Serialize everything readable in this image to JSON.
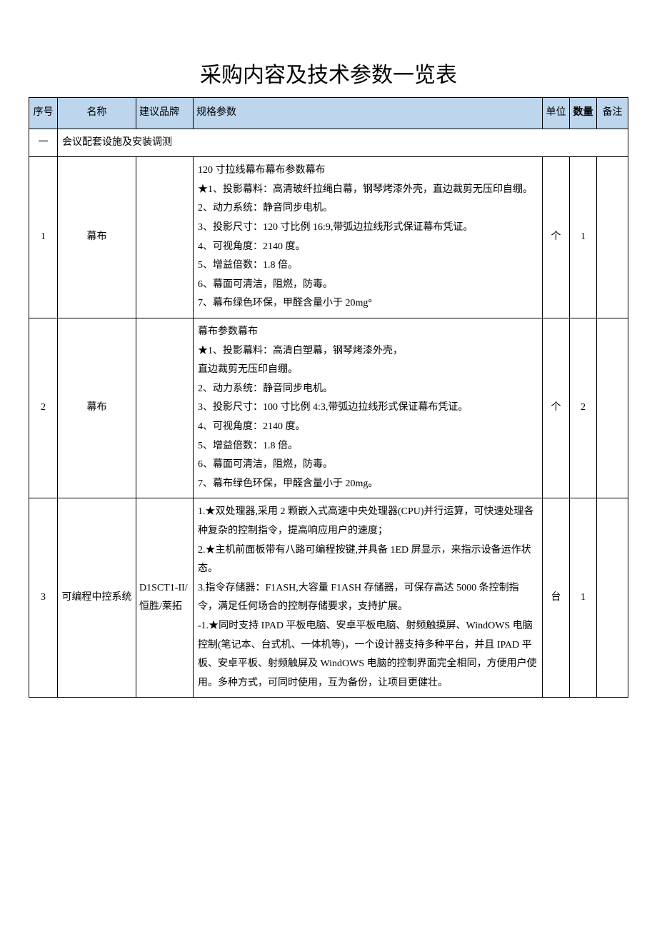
{
  "title": "采购内容及技术参数一览表",
  "columns": [
    "序号",
    "名称",
    "建议品牌",
    "规格参数",
    "单位",
    "数量",
    "备注"
  ],
  "bold_columns": [
    false,
    false,
    false,
    false,
    false,
    true,
    false
  ],
  "header_bg": "#bdd6ee",
  "section": {
    "seq": "一",
    "label": "会议配套设施及安装调测"
  },
  "rows": [
    {
      "seq": "1",
      "name": "幕布",
      "brand": "",
      "spec": [
        "120 寸拉线幕布幕布参数幕布",
        "★1、投影幕料：高清玻纤拉绳白幕，钢琴烤漆外壳，直边裁剪无压印自绷。",
        "2、动力系统：静音同步电机。",
        "3、投影尺寸：120 寸比例 16:9,带弧边拉线形式保证幕布凭证。",
        "4、可视角度：2140 度。",
        "5、增益倍数：1.8 倍。",
        "6、幕面可清洁，阻燃，防毒。",
        "7、幕布绿色环保，甲醛含量小于 20mg°"
      ],
      "unit": "个",
      "qty": "1",
      "note": ""
    },
    {
      "seq": "2",
      "name": "幕布",
      "brand": "",
      "spec": [
        "幕布参数幕布",
        "★1、投影幕料：高清白塑幕，钢琴烤漆外壳，",
        "直边裁剪无压印自绷。",
        "2、动力系统：静音同步电机。",
        "3、投影尺寸：100 寸比例 4:3,带弧边拉线形式保证幕布凭证。",
        "4、可视角度：2140 度。",
        "5、增益倍数：1.8 倍。",
        "6、幕面可清洁，阻燃，防毒。",
        "7、幕布绿色环保，甲醛含量小于 20mg。"
      ],
      "unit": "个",
      "qty": "2",
      "note": ""
    },
    {
      "seq": "3",
      "name": "可编程中控系统",
      "brand": "D1SCT1-II/恒胜/莱拓",
      "spec": [
        "1.★双处理器,采用 2 颗嵌入式高速中央处理器(CPU)并行运算，可快速处理各种复杂的控制指令，提高响应用户的速度；",
        "2.★主机前面板带有八路可编程按键,并具备 1ED 屏显示，来指示设备运作状态。",
        "3.指令存储器：F1ASH,大容量 F1ASH 存储器，可保存高达 5000 条控制指令，满足任何场合的控制存储要求，支持扩展。",
        "-1.★同时支持 IPAD 平板电脑、安卓平板电脑、射频触摸屏、WindOWS 电脑控制(笔记本、台式机、一体机等)，一个设计器支持多种平台，并且 IPAD 平板、安卓平板、射频触屏及 WindOWS 电脑的控制界面完全相同，方便用户使用。多种方式，可同时使用，互为备份，让项目更健壮。"
      ],
      "unit": "台",
      "qty": "1",
      "note": ""
    }
  ]
}
